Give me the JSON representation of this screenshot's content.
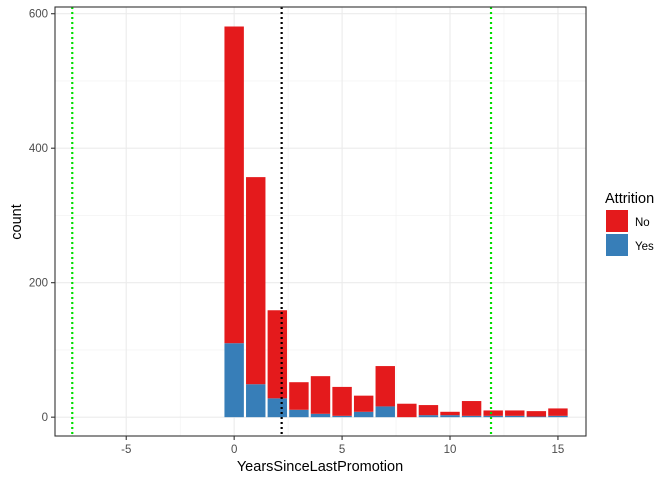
{
  "chart_data": {
    "type": "bar",
    "stacked": true,
    "xlabel": "YearsSinceLastPromotion",
    "ylabel": "count",
    "xlim": [
      -8.3,
      16.3
    ],
    "ylim": [
      -28,
      610
    ],
    "x_ticks": [
      -5,
      0,
      5,
      10,
      15
    ],
    "y_ticks": [
      0,
      200,
      400,
      600
    ],
    "grid": true,
    "x": [
      0,
      1,
      2,
      3,
      4,
      5,
      6,
      7,
      8,
      9,
      10,
      11,
      12,
      13,
      14,
      15
    ],
    "series": [
      {
        "name": "No",
        "color": "#E41A1C",
        "values": [
          471,
          308,
          131,
          41,
          56,
          43,
          24,
          60,
          20,
          15,
          5,
          22,
          8,
          8,
          8,
          11
        ]
      },
      {
        "name": "Yes",
        "color": "#377EB8",
        "values": [
          110,
          49,
          28,
          11,
          5,
          2,
          8,
          16,
          0,
          3,
          3,
          2,
          2,
          2,
          1,
          2
        ]
      }
    ],
    "reference_lines": [
      {
        "x": 2.2,
        "color": "#000000",
        "style": "dotted"
      },
      {
        "x": -7.5,
        "color": "#00E000",
        "style": "dotted"
      },
      {
        "x": 11.9,
        "color": "#00E000",
        "style": "dotted"
      }
    ],
    "legend": {
      "title": "Attrition",
      "placement": "right",
      "entries": [
        {
          "label": "No",
          "color": "#E41A1C"
        },
        {
          "label": "Yes",
          "color": "#377EB8"
        }
      ]
    }
  }
}
